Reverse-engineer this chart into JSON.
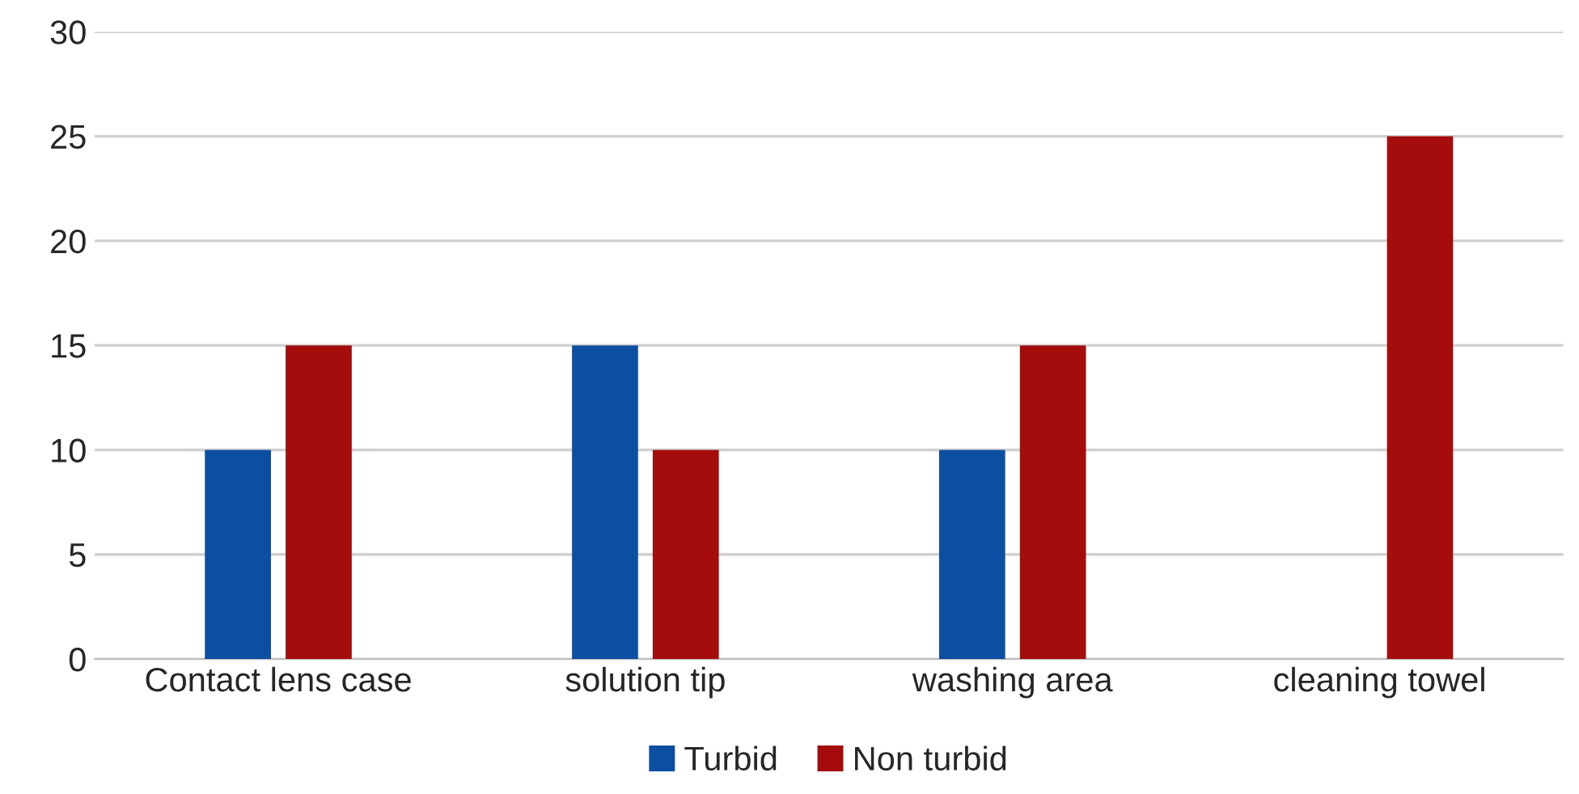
{
  "chart_data": {
    "type": "bar",
    "categories": [
      "Contact lens case",
      "solution tip",
      "washing area",
      "cleaning towel"
    ],
    "series": [
      {
        "name": "Turbid",
        "color": "#0b4ea2",
        "values": [
          10,
          15,
          10,
          null
        ]
      },
      {
        "name": "Non turbid",
        "color": "#a50d0d",
        "values": [
          15,
          10,
          15,
          25
        ]
      }
    ],
    "ylim": [
      0,
      30
    ],
    "yticks": [
      0,
      5,
      10,
      15,
      20,
      25,
      30
    ],
    "grid": "y",
    "legend": "bottom"
  }
}
